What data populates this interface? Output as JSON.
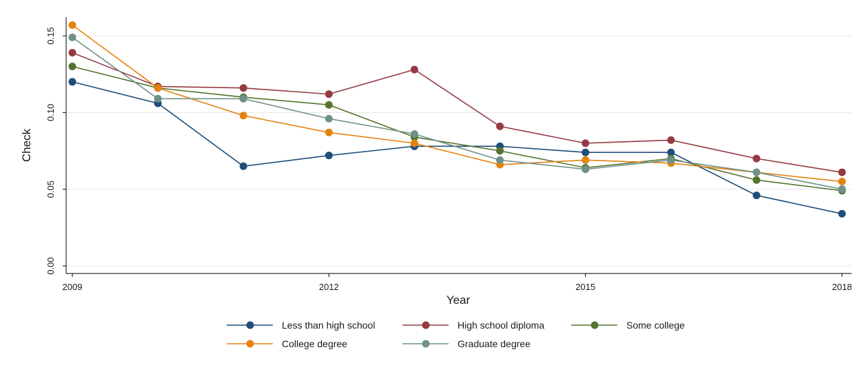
{
  "chart_data": {
    "type": "line",
    "title": "",
    "xlabel": "Year",
    "ylabel": "Check",
    "xlim": [
      2009,
      2018
    ],
    "ylim": [
      0,
      0.16
    ],
    "x_ticks": [
      2009,
      2012,
      2015,
      2018
    ],
    "x_tick_labels": [
      "2009",
      "2012",
      "2015",
      "2018"
    ],
    "y_ticks": [
      0,
      0.05,
      0.1,
      0.15
    ],
    "y_tick_labels": [
      "0.00",
      "0.05",
      "0.10",
      "0.15"
    ],
    "grid": "horizontal",
    "legend_position": "bottom",
    "x": [
      2009,
      2010,
      2011,
      2012,
      2013,
      2014,
      2015,
      2016,
      2017,
      2018
    ],
    "series": [
      {
        "name": "Less than high school",
        "color": "#1f4e79",
        "values": [
          0.12,
          0.106,
          0.065,
          0.072,
          0.078,
          0.078,
          0.074,
          0.074,
          0.046,
          0.034
        ]
      },
      {
        "name": "High school diploma",
        "color": "#953a43",
        "values": [
          0.139,
          0.117,
          0.116,
          0.112,
          0.128,
          0.091,
          0.08,
          0.082,
          0.07,
          0.061
        ]
      },
      {
        "name": "Some college",
        "color": "#55752f",
        "values": [
          0.13,
          0.116,
          0.11,
          0.105,
          0.084,
          0.075,
          0.064,
          0.07,
          0.056,
          0.049
        ]
      },
      {
        "name": "College degree",
        "color": "#e5830f",
        "values": [
          0.157,
          0.116,
          0.098,
          0.087,
          0.08,
          0.066,
          0.069,
          0.067,
          0.061,
          0.055
        ]
      },
      {
        "name": "Graduate degree",
        "color": "#6f9189",
        "values": [
          0.149,
          0.109,
          0.109,
          0.096,
          0.086,
          0.069,
          0.063,
          0.069,
          0.061,
          0.05
        ]
      }
    ]
  }
}
